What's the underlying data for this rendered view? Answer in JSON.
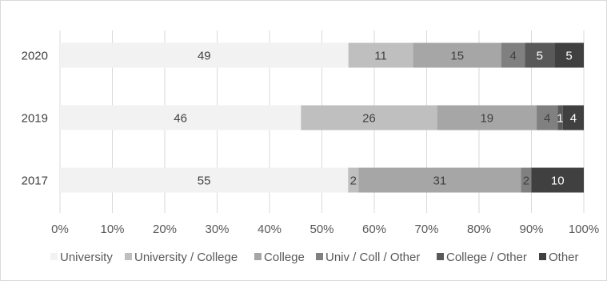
{
  "chart_data": {
    "type": "bar",
    "orientation": "horizontal",
    "stacked": "percent",
    "categories": [
      "2020",
      "2019",
      "2017"
    ],
    "series": [
      {
        "name": "University",
        "color": "#f2f2f2",
        "label_color": "#404040",
        "values": [
          49,
          46,
          55
        ]
      },
      {
        "name": "University / College",
        "color": "#bfbfbf",
        "label_color": "#404040",
        "values": [
          11,
          26,
          2
        ]
      },
      {
        "name": "College",
        "color": "#a6a6a6",
        "label_color": "#404040",
        "values": [
          15,
          19,
          31
        ]
      },
      {
        "name": "Univ / Coll / Other",
        "color": "#808080",
        "label_color": "#404040",
        "values": [
          4,
          4,
          2
        ]
      },
      {
        "name": "College / Other",
        "color": "#595959",
        "label_color": "#ffffff",
        "values": [
          5,
          1,
          0
        ]
      },
      {
        "name": "Other",
        "color": "#404040",
        "label_color": "#ffffff",
        "values": [
          5,
          4,
          10
        ]
      }
    ],
    "x_ticks": [
      "0%",
      "10%",
      "20%",
      "30%",
      "40%",
      "50%",
      "60%",
      "70%",
      "80%",
      "90%",
      "100%"
    ],
    "xlim": [
      0,
      100
    ],
    "grid": "vertical",
    "legend": "bottom"
  }
}
